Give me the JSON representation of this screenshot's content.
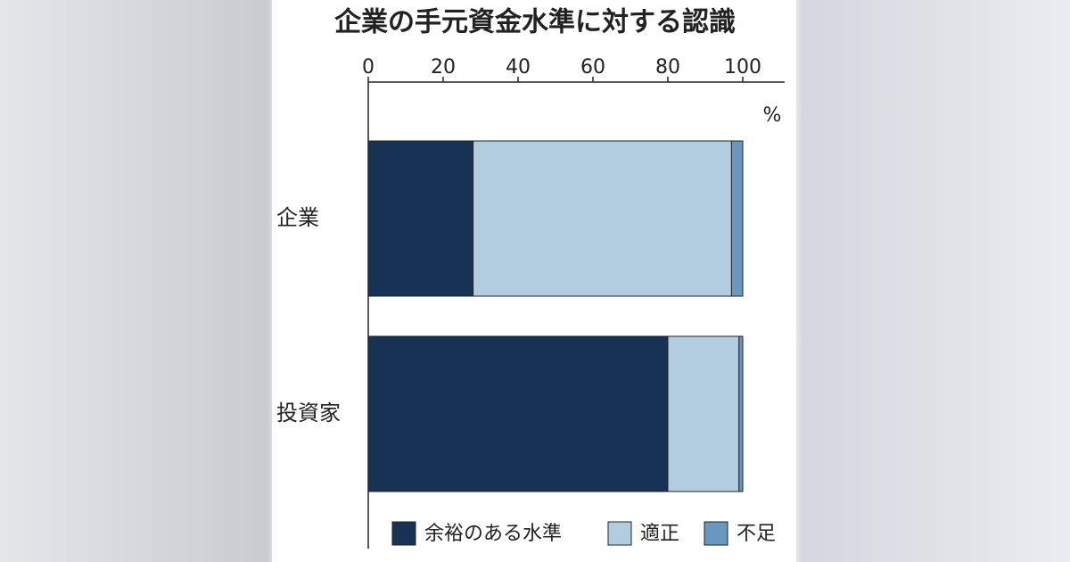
{
  "chart_data": {
    "type": "stacked_barh",
    "title": "企業の手元資金水準に対する認識",
    "x_label": "%",
    "categories": [
      "企業",
      "投資家"
    ],
    "series": [
      {
        "name": "余裕のある水準",
        "color": "#173254",
        "values": [
          28,
          80
        ]
      },
      {
        "name": "適正",
        "color": "#b3cde0",
        "values": [
          69,
          19
        ]
      },
      {
        "name": "不足",
        "color": "#6a96c0",
        "values": [
          3,
          1
        ]
      }
    ],
    "xlim": [
      0,
      110
    ],
    "xticks": [
      0,
      20,
      40,
      60,
      80,
      100
    ],
    "grid": false,
    "legend": "bottom"
  }
}
